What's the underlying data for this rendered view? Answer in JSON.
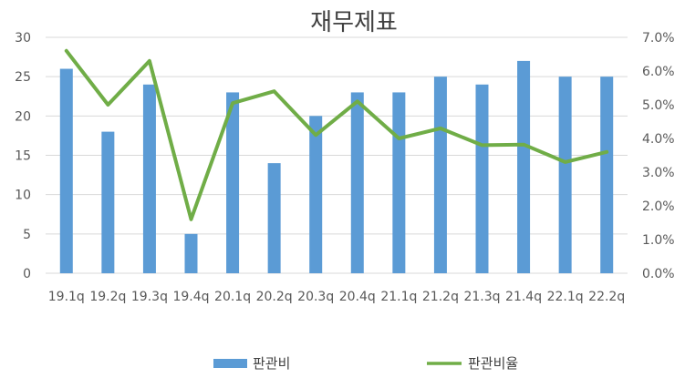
{
  "chart_data": {
    "type": "bar",
    "title": "재무제표",
    "categories": [
      "19.1q",
      "19.2q",
      "19.3q",
      "19.4q",
      "20.1q",
      "20.2q",
      "20.3q",
      "20.4q",
      "21.1q",
      "21.2q",
      "21.3q",
      "21.4q",
      "22.1q",
      "22.2q"
    ],
    "series": [
      {
        "name": "판관비",
        "type": "bar",
        "axis": "left",
        "color": "#5b9bd5",
        "values": [
          26,
          18,
          24,
          5,
          23,
          14,
          20,
          23,
          23,
          25,
          24,
          27,
          25,
          25
        ]
      },
      {
        "name": "판관비율",
        "type": "line",
        "axis": "right",
        "color": "#70ad47",
        "values": [
          6.6,
          5.0,
          6.3,
          1.6,
          5.05,
          5.4,
          4.1,
          5.1,
          4.0,
          4.3,
          3.8,
          3.82,
          3.3,
          3.6
        ]
      }
    ],
    "y_left": {
      "min": 0,
      "max": 30,
      "ticks": [
        "0",
        "5",
        "10",
        "15",
        "20",
        "25",
        "30"
      ]
    },
    "y_right": {
      "min": 0,
      "max": 7,
      "ticks": [
        "0.0%",
        "1.0%",
        "2.0%",
        "3.0%",
        "4.0%",
        "5.0%",
        "6.0%",
        "7.0%"
      ]
    },
    "grid": true,
    "legend_position": "bottom"
  }
}
